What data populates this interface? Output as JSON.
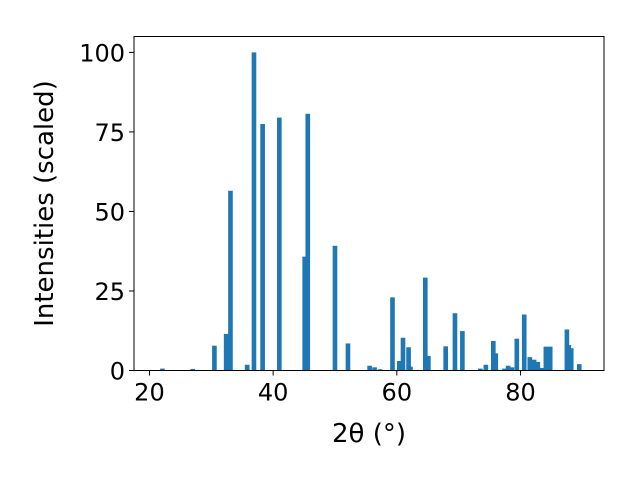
{
  "chart_data": {
    "type": "bar",
    "xlabel": "2θ (°)",
    "ylabel": "Intensities (scaled)",
    "xlim": [
      17.5,
      93.5
    ],
    "ylim": [
      0,
      105
    ],
    "xticks": [
      20,
      40,
      60,
      80
    ],
    "yticks": [
      0,
      25,
      50,
      75,
      100
    ],
    "grid": false,
    "bar_color": "#1f77b4",
    "bar_width": 0.75,
    "x": [
      22.1,
      27.0,
      30.5,
      32.4,
      33.1,
      35.8,
      36.9,
      38.3,
      41.0,
      45.1,
      45.6,
      50.0,
      52.1,
      55.6,
      56.4,
      57.3,
      59.3,
      60.4,
      61.0,
      61.9,
      62.2,
      64.6,
      65.1,
      67.9,
      69.4,
      70.6,
      73.5,
      74.4,
      75.6,
      76.0,
      77.4,
      78.0,
      78.6,
      79.4,
      80.6,
      81.5,
      82.2,
      82.8,
      83.4,
      84.1,
      84.8,
      87.5,
      87.8,
      88.2,
      89.5
    ],
    "values": [
      0.6,
      0.5,
      7.8,
      11.5,
      56.5,
      1.8,
      100,
      77.5,
      79.5,
      35.8,
      80.7,
      39.2,
      8.5,
      1.5,
      1.0,
      0.4,
      23,
      3.0,
      10.3,
      7.3,
      1.2,
      29.2,
      4.6,
      7.6,
      18.0,
      12.4,
      0.6,
      1.8,
      9.3,
      5.4,
      0.6,
      1.5,
      1.0,
      10.0,
      17.6,
      4.2,
      3.4,
      2.7,
      0.8,
      7.5,
      7.5,
      12.9,
      8.0,
      7.0,
      2.0
    ]
  }
}
